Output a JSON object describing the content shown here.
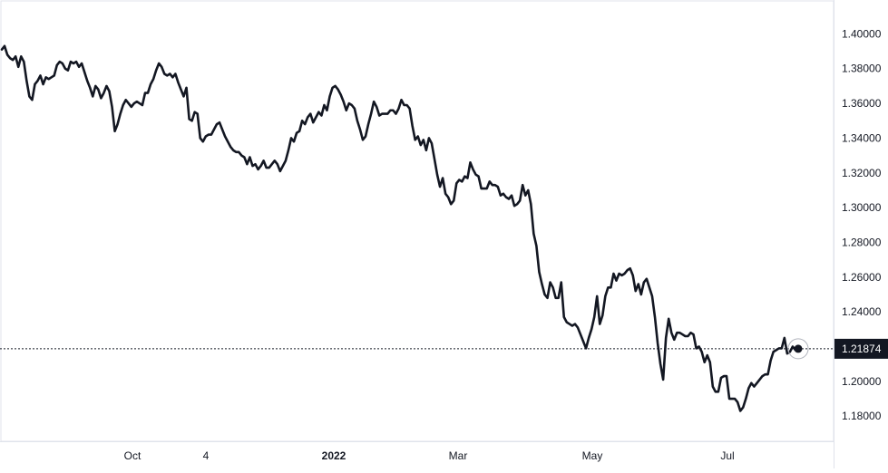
{
  "chart_data": {
    "type": "line",
    "title": "",
    "xlabel": "",
    "ylabel": "",
    "x_tick_labels": [
      {
        "label": "Oct",
        "bold": false
      },
      {
        "label": "4",
        "bold": false
      },
      {
        "label": "2022",
        "bold": true
      },
      {
        "label": "Mar",
        "bold": false
      },
      {
        "label": "May",
        "bold": false
      },
      {
        "label": "Jul",
        "bold": false
      }
    ],
    "y_tick_labels": [
      "1.40000",
      "1.38000",
      "1.36000",
      "1.34000",
      "1.32000",
      "1.30000",
      "1.28000",
      "1.26000",
      "1.24000",
      "1.22000",
      "1.20000",
      "1.18000"
    ],
    "ylim": [
      1.1655,
      1.4195
    ],
    "grid": false,
    "last_price": {
      "label": "1.21874",
      "value": 1.21874
    },
    "line_color": "#131722",
    "series": [
      {
        "values": [
          1.391,
          1.393,
          1.388,
          1.386,
          1.385,
          1.387,
          1.381,
          1.387,
          1.384,
          1.373,
          1.364,
          1.362,
          1.371,
          1.373,
          1.376,
          1.371,
          1.375,
          1.374,
          1.375,
          1.376,
          1.382,
          1.384,
          1.383,
          1.38,
          1.379,
          1.384,
          1.383,
          1.384,
          1.381,
          1.383,
          1.378,
          1.373,
          1.369,
          1.364,
          1.37,
          1.368,
          1.363,
          1.366,
          1.37,
          1.367,
          1.358,
          1.344,
          1.348,
          1.354,
          1.359,
          1.362,
          1.36,
          1.358,
          1.36,
          1.361,
          1.36,
          1.359,
          1.366,
          1.366,
          1.371,
          1.374,
          1.379,
          1.383,
          1.381,
          1.377,
          1.376,
          1.377,
          1.375,
          1.377,
          1.372,
          1.368,
          1.364,
          1.369,
          1.351,
          1.35,
          1.355,
          1.354,
          1.34,
          1.338,
          1.341,
          1.342,
          1.342,
          1.345,
          1.348,
          1.349,
          1.345,
          1.341,
          1.338,
          1.335,
          1.333,
          1.332,
          1.332,
          1.33,
          1.329,
          1.325,
          1.329,
          1.324,
          1.325,
          1.322,
          1.324,
          1.327,
          1.323,
          1.323,
          1.325,
          1.327,
          1.325,
          1.321,
          1.324,
          1.327,
          1.333,
          1.34,
          1.338,
          1.343,
          1.344,
          1.35,
          1.348,
          1.352,
          1.354,
          1.349,
          1.352,
          1.355,
          1.353,
          1.359,
          1.356,
          1.364,
          1.369,
          1.37,
          1.368,
          1.365,
          1.361,
          1.356,
          1.36,
          1.359,
          1.357,
          1.35,
          1.345,
          1.339,
          1.341,
          1.348,
          1.354,
          1.361,
          1.358,
          1.353,
          1.354,
          1.354,
          1.354,
          1.356,
          1.356,
          1.354,
          1.357,
          1.362,
          1.359,
          1.359,
          1.357,
          1.347,
          1.339,
          1.341,
          1.336,
          1.339,
          1.333,
          1.34,
          1.337,
          1.328,
          1.319,
          1.312,
          1.317,
          1.308,
          1.306,
          1.302,
          1.304,
          1.314,
          1.316,
          1.315,
          1.318,
          1.317,
          1.326,
          1.322,
          1.319,
          1.318,
          1.311,
          1.311,
          1.311,
          1.315,
          1.313,
          1.313,
          1.312,
          1.307,
          1.308,
          1.306,
          1.305,
          1.307,
          1.301,
          1.302,
          1.304,
          1.313,
          1.307,
          1.31,
          1.302,
          1.285,
          1.278,
          1.263,
          1.256,
          1.25,
          1.248,
          1.257,
          1.254,
          1.248,
          1.248,
          1.257,
          1.237,
          1.234,
          1.233,
          1.232,
          1.233,
          1.231,
          1.227,
          1.223,
          1.219,
          1.225,
          1.23,
          1.237,
          1.249,
          1.233,
          1.238,
          1.249,
          1.254,
          1.254,
          1.262,
          1.258,
          1.262,
          1.261,
          1.262,
          1.264,
          1.265,
          1.261,
          1.252,
          1.256,
          1.25,
          1.257,
          1.259,
          1.254,
          1.249,
          1.237,
          1.222,
          1.21,
          1.201,
          1.225,
          1.236,
          1.228,
          1.224,
          1.228,
          1.228,
          1.227,
          1.226,
          1.226,
          1.228,
          1.227,
          1.219,
          1.22,
          1.217,
          1.211,
          1.215,
          1.211,
          1.197,
          1.194,
          1.194,
          1.202,
          1.203,
          1.203,
          1.19,
          1.19,
          1.19,
          1.188,
          1.183,
          1.185,
          1.19,
          1.196,
          1.199,
          1.197,
          1.199,
          1.201,
          1.203,
          1.204,
          1.204,
          1.212,
          1.217,
          1.218,
          1.219,
          1.219,
          1.225,
          1.216,
          1.217,
          1.22,
          1.218,
          1.219
        ]
      }
    ]
  }
}
